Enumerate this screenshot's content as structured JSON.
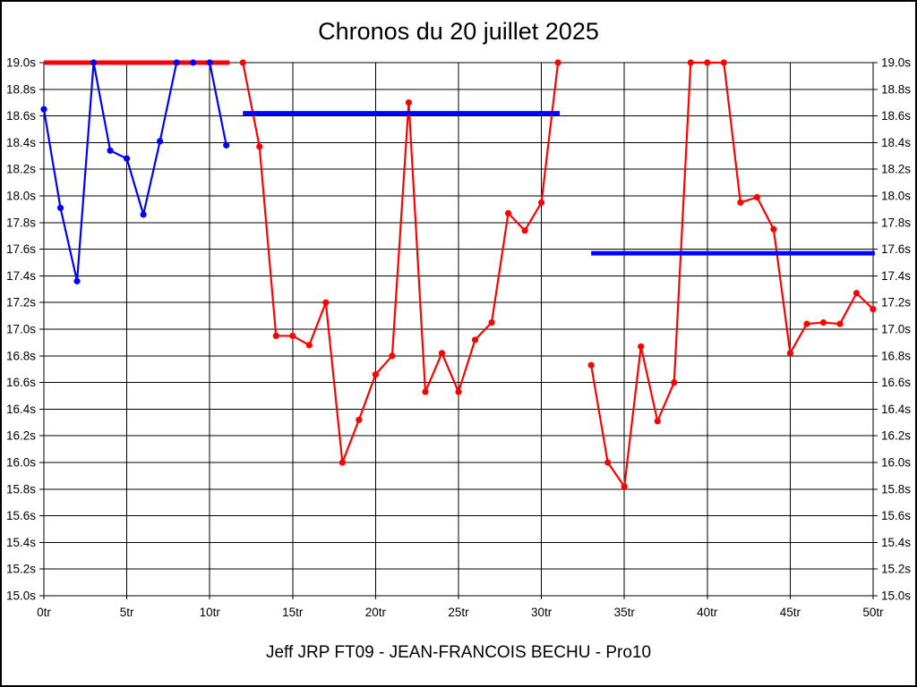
{
  "chart_data": {
    "type": "line",
    "title": "Chronos du 20 juillet 2025",
    "footer": "Jeff JRP FT09 - JEAN-FRANCOIS BECHU - Pro10",
    "x_unit": "tr",
    "y_unit": "s",
    "xlim": [
      0,
      50
    ],
    "ylim": [
      15.0,
      19.0
    ],
    "grid": true,
    "legend": "none",
    "x_ticks": [
      {
        "v": 0,
        "label": "0tr"
      },
      {
        "v": 5,
        "label": "5tr"
      },
      {
        "v": 10,
        "label": "10tr"
      },
      {
        "v": 15,
        "label": "15tr"
      },
      {
        "v": 20,
        "label": "20tr"
      },
      {
        "v": 25,
        "label": "25tr"
      },
      {
        "v": 30,
        "label": "30tr"
      },
      {
        "v": 35,
        "label": "35tr"
      },
      {
        "v": 40,
        "label": "40tr"
      },
      {
        "v": 45,
        "label": "45tr"
      },
      {
        "v": 50,
        "label": "50tr"
      }
    ],
    "y_ticks": [
      {
        "v": 19.0,
        "label": "19.0s"
      },
      {
        "v": 18.8,
        "label": "18.8s"
      },
      {
        "v": 18.6,
        "label": "18.6s"
      },
      {
        "v": 18.4,
        "label": "18.4s"
      },
      {
        "v": 18.2,
        "label": "18.2s"
      },
      {
        "v": 18.0,
        "label": "18.0s"
      },
      {
        "v": 17.8,
        "label": "17.8s"
      },
      {
        "v": 17.6,
        "label": "17.6s"
      },
      {
        "v": 17.4,
        "label": "17.4s"
      },
      {
        "v": 17.2,
        "label": "17.2s"
      },
      {
        "v": 17.0,
        "label": "17.0s"
      },
      {
        "v": 16.8,
        "label": "16.8s"
      },
      {
        "v": 16.6,
        "label": "16.6s"
      },
      {
        "v": 16.4,
        "label": "16.4s"
      },
      {
        "v": 16.2,
        "label": "16.2s"
      },
      {
        "v": 16.0,
        "label": "16.0s"
      },
      {
        "v": 15.8,
        "label": "15.8s"
      },
      {
        "v": 15.6,
        "label": "15.6s"
      },
      {
        "v": 15.4,
        "label": "15.4s"
      },
      {
        "v": 15.2,
        "label": "15.2s"
      },
      {
        "v": 15.0,
        "label": "15.0s"
      }
    ],
    "series": [
      {
        "name": "blue-run",
        "color": "#0000ff",
        "marker": "circle",
        "x": [
          0,
          1,
          2,
          3,
          4,
          5,
          6,
          7,
          8,
          9,
          10,
          11
        ],
        "values": [
          18.65,
          17.91,
          17.36,
          19.0,
          18.34,
          18.28,
          17.86,
          18.41,
          19.0,
          19.0,
          19.0,
          18.38
        ]
      },
      {
        "name": "red-run-a",
        "color": "#ff0000",
        "marker": "circle",
        "x": [
          12,
          13,
          14,
          15,
          16,
          17,
          18,
          19,
          20,
          21,
          22,
          23,
          24,
          25,
          26,
          27,
          28,
          29,
          30,
          31
        ],
        "values": [
          19.0,
          18.37,
          16.95,
          16.95,
          16.88,
          17.2,
          16.0,
          16.32,
          16.66,
          16.8,
          18.7,
          16.53,
          16.82,
          16.53,
          16.92,
          17.05,
          17.87,
          17.74,
          17.95,
          19.0
        ]
      },
      {
        "name": "red-run-b",
        "color": "#ff0000",
        "marker": "circle",
        "x": [
          33,
          34,
          35,
          36,
          37,
          38,
          39,
          40,
          41,
          42,
          43,
          44,
          45,
          46,
          47,
          48,
          49,
          50
        ],
        "values": [
          16.73,
          16.0,
          15.82,
          16.87,
          16.31,
          16.6,
          19.0,
          19.0,
          19.0,
          17.95,
          17.99,
          17.75,
          16.82,
          17.04,
          17.05,
          17.04,
          17.27,
          17.15
        ]
      }
    ],
    "reference_lines": [
      {
        "name": "ceiling-line-red",
        "color": "#ff0000",
        "y": 19.0,
        "x_start": 0,
        "x_end": 11.2
      },
      {
        "name": "average-line-blue-1",
        "color": "#0000ff",
        "y": 18.62,
        "x_start": 12,
        "x_end": 31.1
      },
      {
        "name": "average-line-blue-2",
        "color": "#0000ff",
        "y": 17.57,
        "x_start": 33,
        "x_end": 50.1
      }
    ]
  },
  "colors": {
    "background": "#ffffff",
    "grid": "#000000",
    "text": "#000000",
    "blue_series": "#0000ff",
    "red_series": "#ff0000"
  }
}
